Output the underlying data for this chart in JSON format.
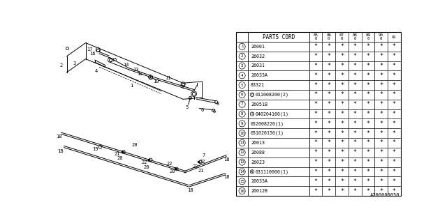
{
  "bg_color": "#ffffff",
  "rows": [
    {
      "num": "1",
      "code": "26001",
      "prefix": ""
    },
    {
      "num": "2",
      "code": "26032",
      "prefix": ""
    },
    {
      "num": "3",
      "code": "26031",
      "prefix": ""
    },
    {
      "num": "4",
      "code": "26033A",
      "prefix": ""
    },
    {
      "num": "5",
      "code": "83321",
      "prefix": ""
    },
    {
      "num": "6",
      "code": "011008200(2)",
      "prefix": "B"
    },
    {
      "num": "7",
      "code": "26051B",
      "prefix": ""
    },
    {
      "num": "8",
      "code": "040204160(1)",
      "prefix": "S"
    },
    {
      "num": "9",
      "code": "052008220(1)",
      "prefix": ""
    },
    {
      "num": "10",
      "code": "051020150(1)",
      "prefix": ""
    },
    {
      "num": "11",
      "code": "26013",
      "prefix": ""
    },
    {
      "num": "12",
      "code": "26088",
      "prefix": ""
    },
    {
      "num": "13",
      "code": "26023",
      "prefix": ""
    },
    {
      "num": "14",
      "code": "031110000(1)",
      "prefix": "W"
    },
    {
      "num": "15",
      "code": "26033A",
      "prefix": ""
    },
    {
      "num": "16",
      "code": "26012B",
      "prefix": ""
    }
  ],
  "year_labels": [
    "85\n0",
    "86\n0",
    "87\n0",
    "88\n0",
    "89\n0",
    "90\n0",
    "91"
  ],
  "num_data_cols": 7,
  "footer_text": "A260000050"
}
